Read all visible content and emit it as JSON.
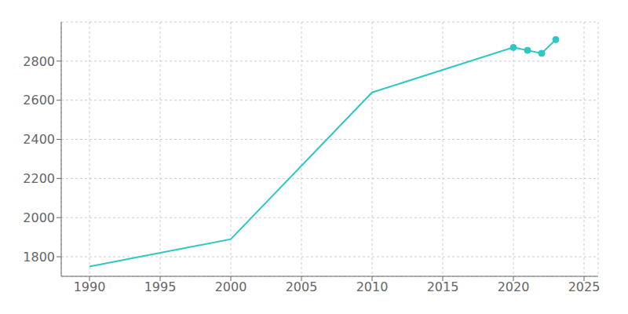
{
  "chart_data": {
    "type": "line",
    "x": [
      1990,
      2000,
      2010,
      2020,
      2021,
      2022,
      2023
    ],
    "series": [
      {
        "type": "line",
        "color": "#2ec8c4",
        "values": [
          1750,
          1890,
          2640,
          2870,
          2855,
          2840,
          2910
        ]
      },
      {
        "type": "scatter",
        "marker": "circle",
        "color": "#2ec8c4",
        "values": [
          null,
          null,
          null,
          2870,
          2855,
          2840,
          2910
        ]
      }
    ],
    "xlim": [
      1988,
      2026
    ],
    "ylim": [
      1700,
      3000
    ],
    "xticks": [
      1990,
      1995,
      2000,
      2005,
      2010,
      2015,
      2020,
      2025
    ],
    "yticks": [
      1800,
      2000,
      2200,
      2400,
      2600,
      2800
    ],
    "grid": true
  }
}
